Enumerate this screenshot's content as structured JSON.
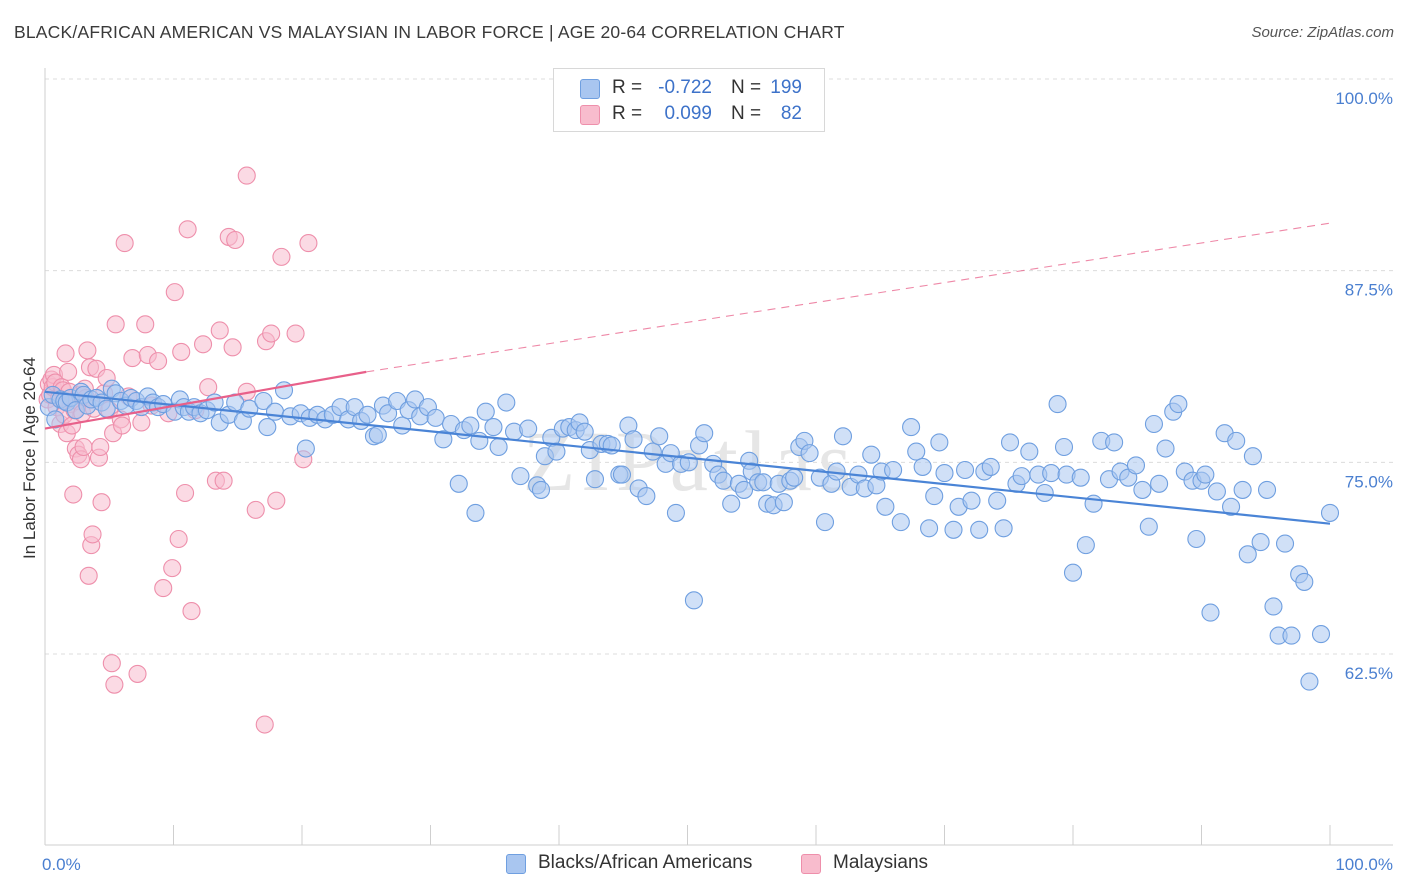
{
  "title": "BLACK/AFRICAN AMERICAN VS MALAYSIAN IN LABOR FORCE | AGE 20-64 CORRELATION CHART",
  "source": "Source: ZipAtlas.com",
  "watermark": "ZIPatlas",
  "legend": {
    "rows": [
      {
        "r_label": "R =",
        "r_value": "-0.722",
        "n_label": "N =",
        "n_value": "199",
        "color": "#a9c6f0",
        "border": "#6f9fe0"
      },
      {
        "r_label": "R =",
        "r_value": "0.099",
        "n_label": "N =",
        "n_value": "82",
        "color": "#f8bccd",
        "border": "#ee8fab"
      }
    ]
  },
  "bottom_legend": [
    {
      "label": "Blacks/African Americans",
      "color": "#a9c6f0",
      "border": "#6f9fe0"
    },
    {
      "label": "Malaysians",
      "color": "#f8bccd",
      "border": "#ee8fab"
    }
  ],
  "chart_data": {
    "type": "scatter",
    "ylabel": "In Labor Force | Age 20-64",
    "xlim": [
      0,
      100
    ],
    "ylim": [
      50,
      102.5
    ],
    "x_tick_labels": [
      "0.0%",
      "100.0%"
    ],
    "y_ticks": [
      62.5,
      75.0,
      87.5,
      100.0
    ],
    "y_tick_labels": [
      "62.5%",
      "75.0%",
      "87.5%",
      "100.0%"
    ],
    "grid": "horizontal dashed",
    "colors": {
      "blue": "#4a84d6",
      "pink": "#e8608a",
      "blue_fill": "#a9c6f0",
      "pink_fill": "#f8bccd"
    },
    "trend_lines": [
      {
        "series": "Blacks/African Americans",
        "x": [
          0,
          100
        ],
        "y": [
          79.6,
          71.0
        ],
        "style": "solid"
      },
      {
        "series": "Malaysians",
        "x": [
          0,
          25
        ],
        "y": [
          77.2,
          80.9
        ],
        "style": "solid"
      },
      {
        "series": "Malaysians",
        "x": [
          25,
          100
        ],
        "y": [
          80.9,
          90.6
        ],
        "style": "dashed"
      }
    ],
    "series": [
      {
        "name": "Blacks/African Americans",
        "points": [
          [
            0.3,
            78.6
          ],
          [
            0.6,
            79.4
          ],
          [
            0.8,
            77.8
          ],
          [
            1.2,
            79.1
          ],
          [
            1.5,
            79.0
          ],
          [
            1.7,
            78.9
          ],
          [
            2.0,
            79.2
          ],
          [
            2.4,
            78.4
          ],
          [
            2.8,
            79.6
          ],
          [
            3.0,
            79.4
          ],
          [
            3.3,
            78.7
          ],
          [
            3.6,
            79.1
          ],
          [
            4.0,
            79.2
          ],
          [
            4.4,
            78.9
          ],
          [
            4.8,
            78.5
          ],
          [
            5.2,
            79.8
          ],
          [
            5.5,
            79.5
          ],
          [
            5.9,
            79.0
          ],
          [
            6.3,
            78.7
          ],
          [
            6.7,
            79.2
          ],
          [
            7.1,
            79.0
          ],
          [
            7.5,
            78.6
          ],
          [
            8.0,
            79.3
          ],
          [
            8.4,
            78.9
          ],
          [
            8.8,
            78.6
          ],
          [
            9.2,
            78.8
          ],
          [
            10.1,
            78.3
          ],
          [
            10.5,
            79.1
          ],
          [
            10.8,
            78.6
          ],
          [
            11.2,
            78.3
          ],
          [
            11.6,
            78.6
          ],
          [
            12.1,
            78.2
          ],
          [
            12.6,
            78.4
          ],
          [
            13.2,
            78.9
          ],
          [
            13.6,
            77.6
          ],
          [
            14.3,
            78.1
          ],
          [
            14.8,
            78.9
          ],
          [
            15.4,
            77.7
          ],
          [
            15.9,
            78.5
          ],
          [
            17.0,
            79.0
          ],
          [
            17.3,
            77.3
          ],
          [
            17.9,
            78.3
          ],
          [
            18.6,
            79.7
          ],
          [
            19.1,
            78.0
          ],
          [
            19.9,
            78.2
          ],
          [
            20.3,
            75.9
          ],
          [
            20.6,
            77.9
          ],
          [
            21.2,
            78.1
          ],
          [
            21.8,
            77.8
          ],
          [
            22.4,
            78.1
          ],
          [
            23.0,
            78.6
          ],
          [
            23.6,
            77.8
          ],
          [
            24.1,
            78.6
          ],
          [
            24.6,
            77.7
          ],
          [
            25.1,
            78.1
          ],
          [
            25.6,
            76.7
          ],
          [
            25.9,
            76.8
          ],
          [
            26.3,
            78.7
          ],
          [
            26.7,
            78.2
          ],
          [
            27.4,
            79.0
          ],
          [
            27.8,
            77.4
          ],
          [
            28.3,
            78.4
          ],
          [
            28.8,
            79.1
          ],
          [
            29.2,
            78.0
          ],
          [
            29.8,
            78.6
          ],
          [
            30.4,
            77.9
          ],
          [
            31.0,
            76.5
          ],
          [
            31.6,
            77.5
          ],
          [
            32.2,
            73.6
          ],
          [
            32.6,
            77.1
          ],
          [
            33.1,
            77.4
          ],
          [
            33.5,
            71.7
          ],
          [
            33.8,
            76.4
          ],
          [
            34.3,
            78.3
          ],
          [
            34.9,
            77.3
          ],
          [
            35.3,
            76.0
          ],
          [
            35.9,
            78.9
          ],
          [
            36.5,
            77.0
          ],
          [
            37.0,
            74.1
          ],
          [
            37.6,
            77.2
          ],
          [
            38.3,
            73.5
          ],
          [
            38.6,
            73.2
          ],
          [
            38.9,
            75.4
          ],
          [
            39.4,
            76.6
          ],
          [
            39.8,
            75.7
          ],
          [
            40.3,
            77.2
          ],
          [
            40.8,
            77.3
          ],
          [
            41.3,
            77.1
          ],
          [
            41.6,
            77.6
          ],
          [
            42.0,
            77.0
          ],
          [
            42.4,
            75.8
          ],
          [
            42.8,
            73.9
          ],
          [
            43.3,
            76.2
          ],
          [
            43.8,
            76.2
          ],
          [
            44.1,
            76.1
          ],
          [
            44.7,
            74.2
          ],
          [
            44.9,
            74.2
          ],
          [
            45.4,
            77.4
          ],
          [
            45.8,
            76.5
          ],
          [
            46.2,
            73.3
          ],
          [
            46.8,
            72.8
          ],
          [
            47.3,
            75.7
          ],
          [
            47.8,
            76.7
          ],
          [
            48.3,
            74.9
          ],
          [
            48.7,
            75.6
          ],
          [
            49.1,
            71.7
          ],
          [
            49.5,
            74.9
          ],
          [
            50.1,
            75.0
          ],
          [
            50.5,
            66.0
          ],
          [
            50.9,
            76.1
          ],
          [
            51.3,
            76.9
          ],
          [
            52.0,
            74.9
          ],
          [
            52.4,
            74.2
          ],
          [
            52.8,
            73.8
          ],
          [
            53.4,
            72.3
          ],
          [
            54.0,
            73.6
          ],
          [
            54.4,
            73.2
          ],
          [
            54.8,
            75.1
          ],
          [
            55.0,
            74.4
          ],
          [
            55.5,
            73.7
          ],
          [
            55.9,
            73.7
          ],
          [
            56.2,
            72.3
          ],
          [
            56.7,
            72.2
          ],
          [
            57.1,
            73.6
          ],
          [
            57.5,
            72.4
          ],
          [
            58.0,
            73.8
          ],
          [
            58.3,
            74.0
          ],
          [
            58.7,
            76.0
          ],
          [
            59.1,
            76.4
          ],
          [
            59.5,
            75.6
          ],
          [
            60.3,
            74.0
          ],
          [
            60.7,
            71.1
          ],
          [
            61.2,
            73.6
          ],
          [
            61.6,
            74.4
          ],
          [
            62.1,
            76.7
          ],
          [
            62.7,
            73.4
          ],
          [
            63.3,
            74.2
          ],
          [
            63.8,
            73.3
          ],
          [
            64.3,
            75.5
          ],
          [
            64.7,
            73.5
          ],
          [
            65.1,
            74.4
          ],
          [
            65.4,
            72.1
          ],
          [
            66.0,
            74.5
          ],
          [
            66.6,
            71.1
          ],
          [
            67.4,
            77.3
          ],
          [
            67.8,
            75.7
          ],
          [
            68.3,
            74.7
          ],
          [
            68.8,
            70.7
          ],
          [
            69.2,
            72.8
          ],
          [
            69.6,
            76.3
          ],
          [
            70.0,
            74.3
          ],
          [
            70.7,
            70.6
          ],
          [
            71.1,
            72.1
          ],
          [
            71.6,
            74.5
          ],
          [
            72.1,
            72.5
          ],
          [
            72.7,
            70.6
          ],
          [
            73.1,
            74.4
          ],
          [
            73.6,
            74.7
          ],
          [
            74.1,
            72.5
          ],
          [
            74.6,
            70.7
          ],
          [
            75.1,
            76.3
          ],
          [
            75.6,
            73.6
          ],
          [
            76.0,
            74.1
          ],
          [
            76.6,
            75.7
          ],
          [
            77.3,
            74.2
          ],
          [
            77.8,
            73.0
          ],
          [
            78.3,
            74.3
          ],
          [
            78.8,
            78.8
          ],
          [
            79.3,
            76.0
          ],
          [
            79.5,
            74.2
          ],
          [
            80.0,
            67.8
          ],
          [
            80.6,
            74.0
          ],
          [
            81.0,
            69.6
          ],
          [
            81.6,
            72.3
          ],
          [
            82.2,
            76.4
          ],
          [
            82.8,
            73.9
          ],
          [
            83.2,
            76.3
          ],
          [
            83.7,
            74.4
          ],
          [
            84.3,
            74.0
          ],
          [
            84.9,
            74.8
          ],
          [
            85.4,
            73.2
          ],
          [
            85.9,
            70.8
          ],
          [
            86.3,
            77.5
          ],
          [
            86.7,
            73.6
          ],
          [
            87.2,
            75.9
          ],
          [
            87.8,
            78.3
          ],
          [
            88.2,
            78.8
          ],
          [
            88.7,
            74.4
          ],
          [
            89.3,
            73.8
          ],
          [
            89.6,
            70.0
          ],
          [
            90.0,
            73.8
          ],
          [
            90.3,
            74.2
          ],
          [
            90.7,
            65.2
          ],
          [
            91.2,
            73.1
          ],
          [
            91.8,
            76.9
          ],
          [
            92.3,
            72.1
          ],
          [
            92.7,
            76.4
          ],
          [
            93.2,
            73.2
          ],
          [
            93.6,
            69.0
          ],
          [
            94.0,
            75.4
          ],
          [
            94.6,
            69.8
          ],
          [
            95.1,
            73.2
          ],
          [
            95.6,
            65.6
          ],
          [
            96.0,
            63.7
          ],
          [
            96.5,
            69.7
          ],
          [
            97.0,
            63.7
          ],
          [
            97.6,
            67.7
          ],
          [
            98.0,
            67.2
          ],
          [
            98.4,
            60.7
          ],
          [
            99.3,
            63.8
          ],
          [
            100.0,
            71.7
          ]
        ]
      },
      {
        "name": "Malaysians",
        "points": [
          [
            0.2,
            79.1
          ],
          [
            0.3,
            80.1
          ],
          [
            0.4,
            79.4
          ],
          [
            0.5,
            80.4
          ],
          [
            0.6,
            79.9
          ],
          [
            0.7,
            80.7
          ],
          [
            0.8,
            80.2
          ],
          [
            0.9,
            78.6
          ],
          [
            1.1,
            79.2
          ],
          [
            1.2,
            77.5
          ],
          [
            1.3,
            79.9
          ],
          [
            1.4,
            79.7
          ],
          [
            1.5,
            78.1
          ],
          [
            1.6,
            82.1
          ],
          [
            1.7,
            76.9
          ],
          [
            1.8,
            80.9
          ],
          [
            1.9,
            79.6
          ],
          [
            2.0,
            78.8
          ],
          [
            2.1,
            77.4
          ],
          [
            2.2,
            72.9
          ],
          [
            2.3,
            78.4
          ],
          [
            2.4,
            75.9
          ],
          [
            2.5,
            79.0
          ],
          [
            2.6,
            75.5
          ],
          [
            2.7,
            79.4
          ],
          [
            2.8,
            75.2
          ],
          [
            2.9,
            78.2
          ],
          [
            3.0,
            76.0
          ],
          [
            3.1,
            79.8
          ],
          [
            3.2,
            79.2
          ],
          [
            3.3,
            82.3
          ],
          [
            3.4,
            67.6
          ],
          [
            3.5,
            81.2
          ],
          [
            3.6,
            69.6
          ],
          [
            3.7,
            70.3
          ],
          [
            3.8,
            78.5
          ],
          [
            4.0,
            81.1
          ],
          [
            4.2,
            75.3
          ],
          [
            4.3,
            76.0
          ],
          [
            4.4,
            72.4
          ],
          [
            4.6,
            79.5
          ],
          [
            4.8,
            80.5
          ],
          [
            5.0,
            78.4
          ],
          [
            5.2,
            61.9
          ],
          [
            5.3,
            76.9
          ],
          [
            5.4,
            60.5
          ],
          [
            5.5,
            84.0
          ],
          [
            5.9,
            77.8
          ],
          [
            6.0,
            77.4
          ],
          [
            6.2,
            89.3
          ],
          [
            6.5,
            79.3
          ],
          [
            6.8,
            81.8
          ],
          [
            7.2,
            61.2
          ],
          [
            7.5,
            77.6
          ],
          [
            7.8,
            84.0
          ],
          [
            8.0,
            82.0
          ],
          [
            8.3,
            78.7
          ],
          [
            8.8,
            81.6
          ],
          [
            9.2,
            66.8
          ],
          [
            9.6,
            78.2
          ],
          [
            9.9,
            68.1
          ],
          [
            10.1,
            86.1
          ],
          [
            10.4,
            70.0
          ],
          [
            10.6,
            82.2
          ],
          [
            10.9,
            73.0
          ],
          [
            11.1,
            90.2
          ],
          [
            11.4,
            65.3
          ],
          [
            11.7,
            78.4
          ],
          [
            12.3,
            82.7
          ],
          [
            12.7,
            79.9
          ],
          [
            13.3,
            73.8
          ],
          [
            13.6,
            83.6
          ],
          [
            13.9,
            73.8
          ],
          [
            14.3,
            89.7
          ],
          [
            14.6,
            82.5
          ],
          [
            14.8,
            89.5
          ],
          [
            15.7,
            93.7
          ],
          [
            15.7,
            79.6
          ],
          [
            16.4,
            71.9
          ],
          [
            17.1,
            57.9
          ],
          [
            17.2,
            82.9
          ],
          [
            17.6,
            83.4
          ],
          [
            18.0,
            72.5
          ],
          [
            18.4,
            88.4
          ],
          [
            19.5,
            83.4
          ],
          [
            20.5,
            89.3
          ],
          [
            20.1,
            75.2
          ]
        ]
      }
    ]
  }
}
